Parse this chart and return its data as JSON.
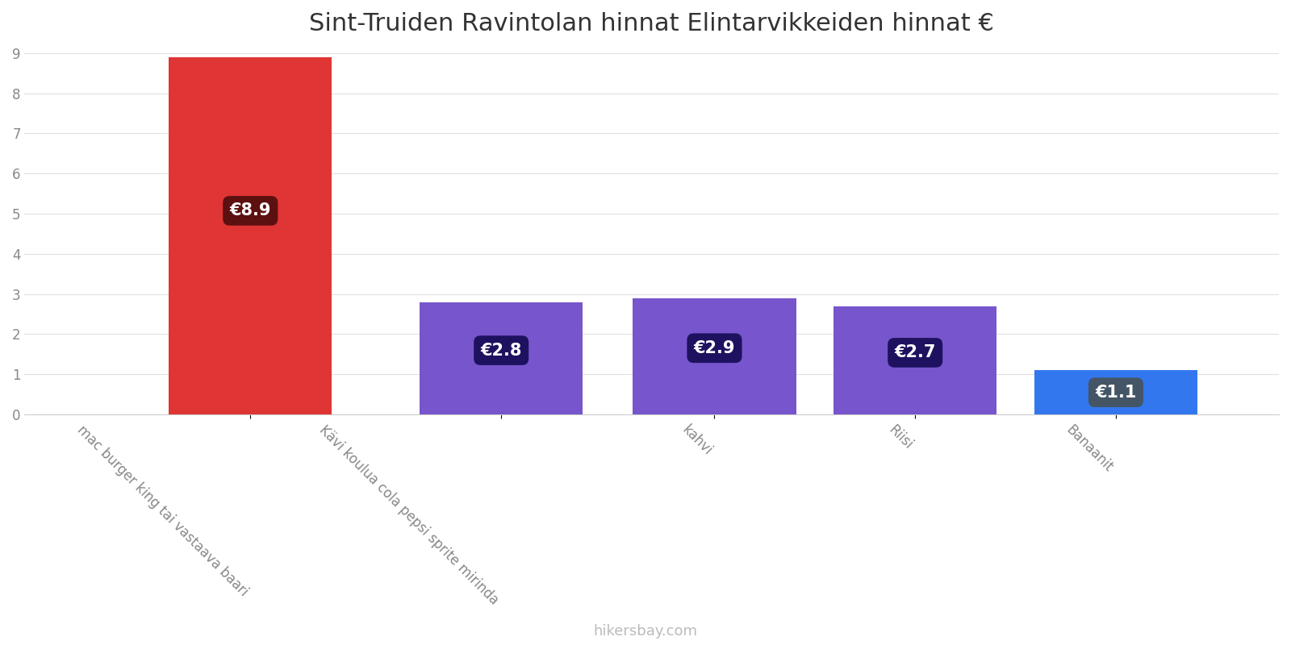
{
  "title": "Sint-Truiden Ravintolan hinnat Elintarvikkeiden hinnat €",
  "categories": [
    "mac burger king tai vastaava baari",
    "Kävi koulua cola pepsi sprite mirinda",
    "kahvi",
    "Riisi",
    "Banaanit"
  ],
  "values": [
    8.9,
    2.8,
    2.9,
    2.7,
    1.1
  ],
  "bar_colors": [
    "#e03535",
    "#7755cc",
    "#7755cc",
    "#7755cc",
    "#3377ee"
  ],
  "label_bg_colors": [
    "#5c1010",
    "#1e1260",
    "#1e1260",
    "#1e1260",
    "#445566"
  ],
  "labels": [
    "€8.9",
    "€2.8",
    "€2.9",
    "€2.7",
    "€1.1"
  ],
  "bar_positions": [
    0.18,
    0.38,
    0.55,
    0.71,
    0.87
  ],
  "bar_width": 0.13,
  "ylim": [
    0,
    9
  ],
  "yticks": [
    0,
    1,
    2,
    3,
    4,
    5,
    6,
    7,
    8,
    9
  ],
  "footer": "hikersbay.com",
  "background_color": "#ffffff",
  "title_fontsize": 22,
  "label_fontsize": 15,
  "tick_fontsize": 12,
  "footer_fontsize": 13
}
